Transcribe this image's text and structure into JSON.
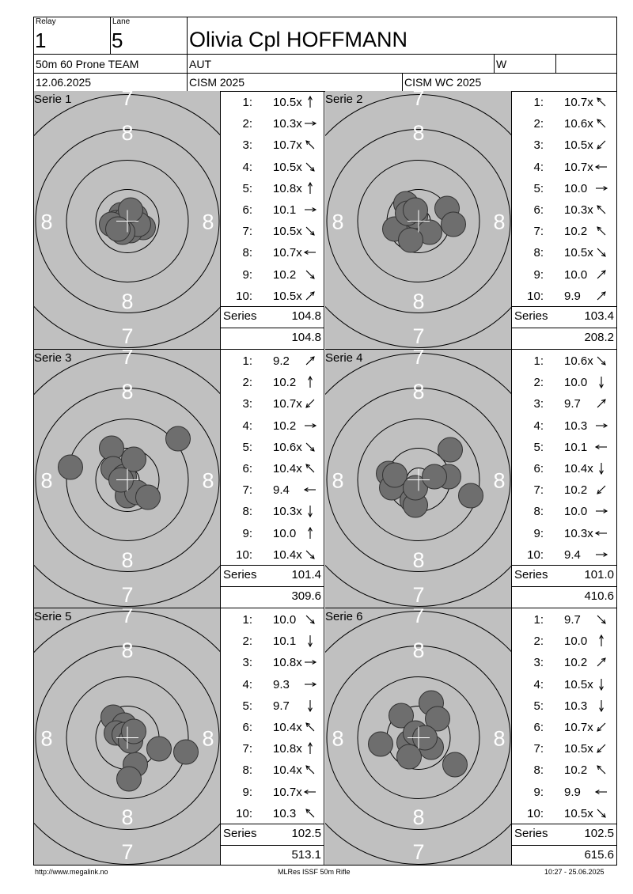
{
  "header": {
    "relay_label": "Relay",
    "relay_value": "1",
    "lane_label": "Lane",
    "lane_value": "5",
    "shooter_name": "Olivia Cpl HOFFMANN",
    "event": "50m 60 Prone TEAM",
    "nation": "AUT",
    "gender": "W",
    "date": "12.06.2025",
    "competition": "CISM 2025",
    "championship": "CISM WC 2025"
  },
  "target_labels": {
    "ring7": "7",
    "ring8": "8"
  },
  "series_label": "Series",
  "series": [
    {
      "title": "Serie 1",
      "shots": [
        {
          "n": "1:",
          "v": "10.5x",
          "dir": "up"
        },
        {
          "n": "2:",
          "v": "10.3x",
          "dir": "right"
        },
        {
          "n": "3:",
          "v": "10.7x",
          "dir": "up-left"
        },
        {
          "n": "4:",
          "v": "10.5x",
          "dir": "down-right"
        },
        {
          "n": "5:",
          "v": "10.8x",
          "dir": "up"
        },
        {
          "n": "6:",
          "v": "10.1",
          "dir": "right"
        },
        {
          "n": "7:",
          "v": "10.5x",
          "dir": "down-right"
        },
        {
          "n": "8:",
          "v": "10.7x",
          "dir": "left"
        },
        {
          "n": "9:",
          "v": "10.2",
          "dir": "down-right"
        },
        {
          "n": "10:",
          "v": "10.5x",
          "dir": "up-right"
        }
      ],
      "series_total": "104.8",
      "running_total": "104.8"
    },
    {
      "title": "Serie 2",
      "shots": [
        {
          "n": "1:",
          "v": "10.7x",
          "dir": "up-left"
        },
        {
          "n": "2:",
          "v": "10.6x",
          "dir": "up-left"
        },
        {
          "n": "3:",
          "v": "10.5x",
          "dir": "down-left"
        },
        {
          "n": "4:",
          "v": "10.7x",
          "dir": "left"
        },
        {
          "n": "5:",
          "v": "10.0",
          "dir": "right"
        },
        {
          "n": "6:",
          "v": "10.3x",
          "dir": "up-left"
        },
        {
          "n": "7:",
          "v": "10.2",
          "dir": "up-left"
        },
        {
          "n": "8:",
          "v": "10.5x",
          "dir": "down-right"
        },
        {
          "n": "9:",
          "v": "10.0",
          "dir": "up-right"
        },
        {
          "n": "10:",
          "v": "9.9",
          "dir": "up-right"
        }
      ],
      "series_total": "103.4",
      "running_total": "208.2"
    },
    {
      "title": "Serie 3",
      "shots": [
        {
          "n": "1:",
          "v": "9.2",
          "dir": "up-right"
        },
        {
          "n": "2:",
          "v": "10.2",
          "dir": "up"
        },
        {
          "n": "3:",
          "v": "10.7x",
          "dir": "down-left"
        },
        {
          "n": "4:",
          "v": "10.2",
          "dir": "right"
        },
        {
          "n": "5:",
          "v": "10.6x",
          "dir": "down-right"
        },
        {
          "n": "6:",
          "v": "10.4x",
          "dir": "up-left"
        },
        {
          "n": "7:",
          "v": "9.4",
          "dir": "left"
        },
        {
          "n": "8:",
          "v": "10.3x",
          "dir": "down"
        },
        {
          "n": "9:",
          "v": "10.0",
          "dir": "up"
        },
        {
          "n": "10:",
          "v": "10.4x",
          "dir": "down-right"
        }
      ],
      "series_total": "101.4",
      "running_total": "309.6"
    },
    {
      "title": "Serie 4",
      "shots": [
        {
          "n": "1:",
          "v": "10.6x",
          "dir": "down-right"
        },
        {
          "n": "2:",
          "v": "10.0",
          "dir": "down"
        },
        {
          "n": "3:",
          "v": "9.7",
          "dir": "up-right"
        },
        {
          "n": "4:",
          "v": "10.3",
          "dir": "right"
        },
        {
          "n": "5:",
          "v": "10.1",
          "dir": "left"
        },
        {
          "n": "6:",
          "v": "10.4x",
          "dir": "down"
        },
        {
          "n": "7:",
          "v": "10.2",
          "dir": "down-left"
        },
        {
          "n": "8:",
          "v": "10.0",
          "dir": "right"
        },
        {
          "n": "9:",
          "v": "10.3x",
          "dir": "left"
        },
        {
          "n": "10:",
          "v": "9.4",
          "dir": "right"
        }
      ],
      "series_total": "101.0",
      "running_total": "410.6"
    },
    {
      "title": "Serie 5",
      "shots": [
        {
          "n": "1:",
          "v": "10.0",
          "dir": "down-right"
        },
        {
          "n": "2:",
          "v": "10.1",
          "dir": "down"
        },
        {
          "n": "3:",
          "v": "10.8x",
          "dir": "right"
        },
        {
          "n": "4:",
          "v": "9.3",
          "dir": "right"
        },
        {
          "n": "5:",
          "v": "9.7",
          "dir": "down"
        },
        {
          "n": "6:",
          "v": "10.4x",
          "dir": "up-left"
        },
        {
          "n": "7:",
          "v": "10.8x",
          "dir": "up"
        },
        {
          "n": "8:",
          "v": "10.4x",
          "dir": "up-left"
        },
        {
          "n": "9:",
          "v": "10.7x",
          "dir": "left"
        },
        {
          "n": "10:",
          "v": "10.3",
          "dir": "up-left"
        }
      ],
      "series_total": "102.5",
      "running_total": "513.1"
    },
    {
      "title": "Serie 6",
      "shots": [
        {
          "n": "1:",
          "v": "9.7",
          "dir": "down-right"
        },
        {
          "n": "2:",
          "v": "10.0",
          "dir": "up"
        },
        {
          "n": "3:",
          "v": "10.2",
          "dir": "up-right"
        },
        {
          "n": "4:",
          "v": "10.5x",
          "dir": "down"
        },
        {
          "n": "5:",
          "v": "10.3",
          "dir": "down"
        },
        {
          "n": "6:",
          "v": "10.7x",
          "dir": "down-left"
        },
        {
          "n": "7:",
          "v": "10.5x",
          "dir": "down-left"
        },
        {
          "n": "8:",
          "v": "10.2",
          "dir": "up-left"
        },
        {
          "n": "9:",
          "v": "9.9",
          "dir": "left"
        },
        {
          "n": "10:",
          "v": "10.5x",
          "dir": "down-right"
        }
      ],
      "series_total": "102.5",
      "running_total": "615.6"
    }
  ],
  "footer": {
    "website": "http://www.megalink.no",
    "software": "MLRes ISSF 50m Rifle",
    "printed": "10:27 - 25.06.2025"
  },
  "colors": {
    "target_bg": "#c0c0c0",
    "shot_fill": "#6e6e6e",
    "ring_line": "#000000",
    "ring_number": "#ffffff"
  }
}
